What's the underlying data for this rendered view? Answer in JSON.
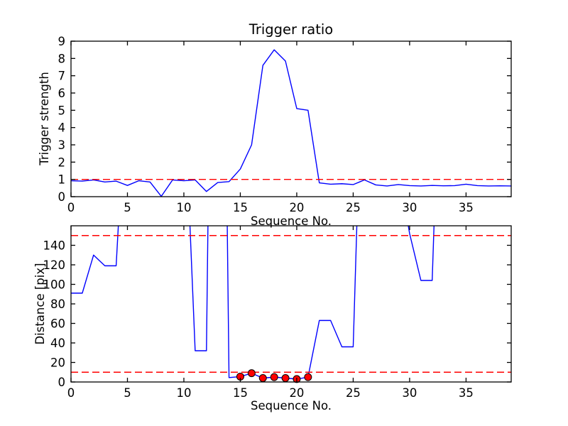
{
  "figure": {
    "background": "#ffffff",
    "line_color": "#0000ff",
    "threshold_color": "#ff0000",
    "marker_face_color": "#ff0000",
    "marker_edge_color": "#000000"
  },
  "chart_data": [
    {
      "type": "line",
      "title": "Trigger ratio",
      "xlabel": "Sequence No.",
      "ylabel": "Trigger strength",
      "xlim": [
        0,
        39
      ],
      "ylim": [
        0,
        9
      ],
      "xticks": [
        0,
        5,
        10,
        15,
        20,
        25,
        30,
        35
      ],
      "yticks": [
        0,
        1,
        2,
        3,
        4,
        5,
        6,
        7,
        8,
        9
      ],
      "grid": false,
      "x": [
        0,
        1,
        2,
        3,
        4,
        5,
        6,
        7,
        8,
        9,
        10,
        11,
        12,
        13,
        14,
        15,
        16,
        17,
        18,
        19,
        20,
        21,
        22,
        23,
        24,
        25,
        26,
        27,
        28,
        29,
        30,
        31,
        32,
        33,
        34,
        35,
        36,
        37,
        38,
        39
      ],
      "series": [
        {
          "name": "trigger-strength",
          "color": "#0000ff",
          "values": [
            0.92,
            0.9,
            0.97,
            0.85,
            0.9,
            0.65,
            0.92,
            0.85,
            0.02,
            0.97,
            0.92,
            0.97,
            0.3,
            0.82,
            0.87,
            1.6,
            3.0,
            7.6,
            8.5,
            7.85,
            5.1,
            5.0,
            0.8,
            0.72,
            0.75,
            0.7,
            0.97,
            0.68,
            0.62,
            0.7,
            0.64,
            0.62,
            0.65,
            0.63,
            0.64,
            0.72,
            0.64,
            0.62,
            0.63,
            0.62
          ]
        }
      ],
      "hlines": [
        {
          "name": "trigger-threshold",
          "y": 1.0,
          "color": "#ff0000",
          "style": "dashed"
        }
      ]
    },
    {
      "type": "line",
      "title": "",
      "xlabel": "Sequence No.",
      "ylabel": "Distance [pix]",
      "xlim": [
        0,
        39
      ],
      "ylim": [
        0,
        160
      ],
      "xticks": [
        0,
        5,
        10,
        15,
        20,
        25,
        30,
        35
      ],
      "yticks": [
        0,
        20,
        40,
        60,
        80,
        100,
        120,
        140
      ],
      "grid": false,
      "x": [
        0,
        1,
        2,
        3,
        4,
        5,
        6,
        7,
        8,
        9,
        10,
        11,
        12,
        13,
        14,
        15,
        16,
        17,
        18,
        19,
        20,
        21,
        22,
        23,
        24,
        25,
        26,
        27,
        28,
        29,
        30,
        31,
        32,
        33,
        34,
        35,
        36,
        37,
        38,
        39
      ],
      "series": [
        {
          "name": "distance",
          "color": "#0000ff",
          "values": [
            91,
            91,
            130,
            119,
            119,
            330,
            330,
            330,
            330,
            330,
            310,
            32,
            32,
            1000,
            4.5,
            5.5,
            9,
            4,
            5,
            4,
            3,
            5,
            63,
            63,
            36,
            36,
            420,
            420,
            420,
            220,
            152,
            104,
            104,
            450,
            400,
            400,
            400,
            400,
            400,
            400
          ]
        }
      ],
      "markers": {
        "name": "close-distance-points",
        "x": [
          15,
          16,
          17,
          18,
          19,
          20,
          21
        ],
        "y": [
          5.5,
          9,
          4,
          5,
          4,
          3,
          5
        ],
        "color": "#ff0000",
        "edge": "#000000"
      },
      "hlines": [
        {
          "name": "upper-distance-threshold",
          "y": 150,
          "color": "#ff0000",
          "style": "dashed"
        },
        {
          "name": "lower-distance-threshold",
          "y": 10,
          "color": "#ff0000",
          "style": "dashed"
        }
      ]
    }
  ]
}
